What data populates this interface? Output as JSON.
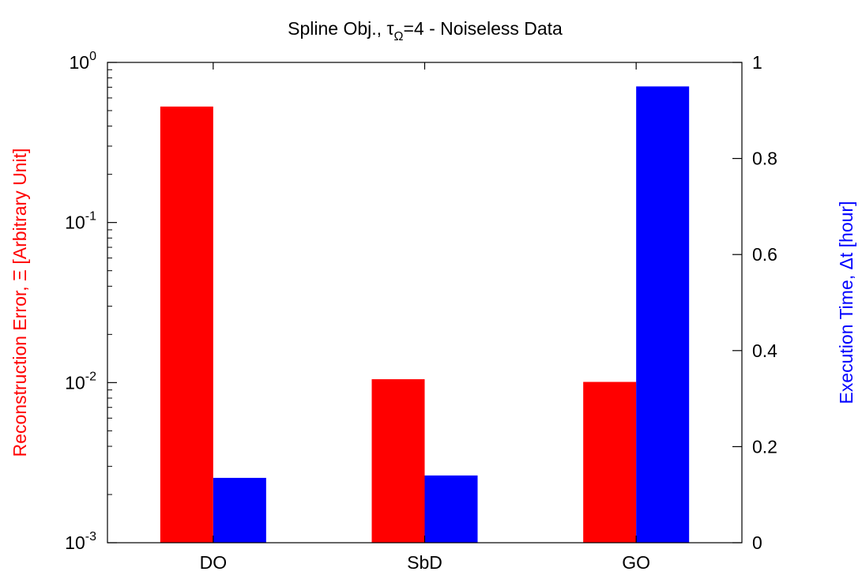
{
  "chart_data": {
    "type": "bar",
    "title": {
      "prefix": "Spline Obj., ",
      "symbol": "τ",
      "subscript": "Ω",
      "suffix": "=4 - Noiseless Data"
    },
    "categories": [
      "DO",
      "SbD",
      "GO"
    ],
    "y_left": {
      "label_text": "Reconstruction Error, ",
      "label_symbol": "Ξ",
      "label_unit": " [Arbitrary Unit]",
      "scale": "log",
      "range": [
        0.001,
        1
      ],
      "major_ticks": [
        {
          "value": 0.001,
          "base": "10",
          "exp": "-3"
        },
        {
          "value": 0.01,
          "base": "10",
          "exp": "-2"
        },
        {
          "value": 0.1,
          "base": "10",
          "exp": "-1"
        },
        {
          "value": 1,
          "base": "10",
          "exp": "0"
        }
      ],
      "color": "#ff0000"
    },
    "y_right": {
      "label_text": "Execution Time, ",
      "label_symbol": "Δt",
      "label_unit": " [hour]",
      "scale": "linear",
      "range": [
        0,
        1
      ],
      "ticks": [
        {
          "value": 0,
          "label": "0"
        },
        {
          "value": 0.2,
          "label": "0.2"
        },
        {
          "value": 0.4,
          "label": "0.4"
        },
        {
          "value": 0.6,
          "label": "0.6"
        },
        {
          "value": 0.8,
          "label": "0.8"
        },
        {
          "value": 1,
          "label": "1"
        }
      ],
      "color": "#0000ff"
    },
    "series": [
      {
        "axis": "left",
        "color": "#ff0000",
        "values": [
          0.53,
          0.0105,
          0.0101
        ]
      },
      {
        "axis": "right",
        "color": "#0000ff",
        "values": [
          0.135,
          0.14,
          0.95
        ]
      }
    ],
    "grid": false,
    "legend": "none"
  }
}
